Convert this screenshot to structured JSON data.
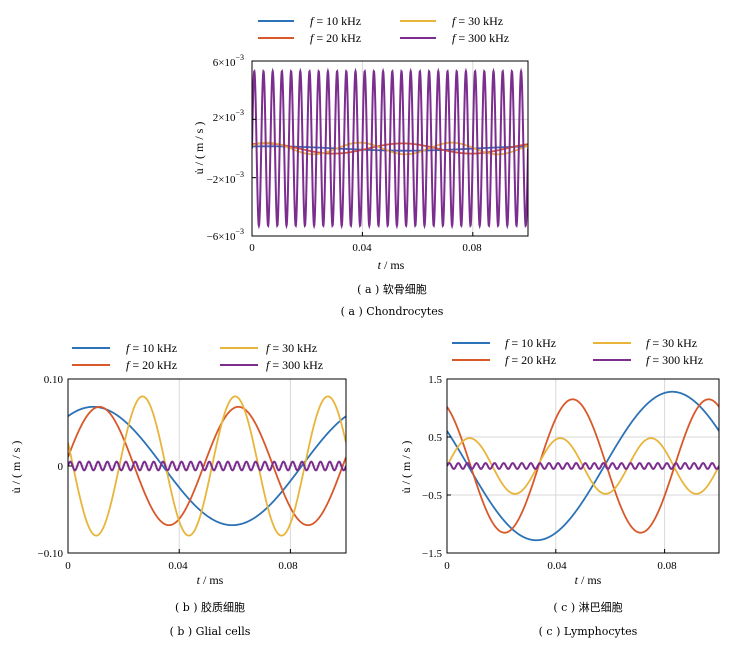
{
  "colors": {
    "f10": "#2c72b6",
    "f20": "#d9582a",
    "f30": "#e8b53a",
    "f300": "#7b2e8e",
    "grid": "#d9d9d9"
  },
  "legend_entries": [
    {
      "key": "f10",
      "f": "f",
      "text": " = 10 kHz"
    },
    {
      "key": "f20",
      "f": "f",
      "text": " = 20 kHz"
    },
    {
      "key": "f30",
      "f": "f",
      "text": " = 30 kHz"
    },
    {
      "key": "f300",
      "f": "f",
      "text": " = 300 kHz"
    }
  ],
  "xlabel_t": "t",
  "xlabel_unit": " / ms",
  "ylabel": "u̇ / ( m / s )",
  "panels": {
    "a": {
      "caption_cn": "( a )  软骨细胞",
      "caption_en": "( a )  Chondrocytes",
      "yticks": [
        "6×10",
        "2×10",
        "−2×10",
        "−6×10"
      ],
      "ytick_exp": "−3",
      "xticks": [
        "0",
        "0.04",
        "0.08"
      ]
    },
    "b": {
      "caption_cn": "( b )  胶质细胞",
      "caption_en": "( b )  Glial cells",
      "yticks": [
        "0.10",
        "0",
        "−0.10"
      ],
      "xticks": [
        "0",
        "0.04",
        "0.08"
      ]
    },
    "c": {
      "caption_cn": "( c )  淋巴细胞",
      "caption_en": "( c )  Lymphocytes",
      "yticks": [
        "1.5",
        "0.5",
        "−0.5",
        "−1.5"
      ],
      "xticks": [
        "0",
        "0.04",
        "0.08"
      ]
    }
  },
  "chart_data": [
    {
      "type": "line",
      "panel": "a",
      "xlim": [
        0,
        0.1
      ],
      "ylim": [
        -0.006,
        0.006
      ],
      "xticks": [
        0,
        0.04,
        0.08
      ],
      "yticks": [
        0.006,
        0.002,
        -0.002,
        -0.006
      ],
      "grid": true,
      "legend_position": "top",
      "series": [
        {
          "name": "f = 10 kHz",
          "key": "f10",
          "freq_khz": 10,
          "amplitude": 0.00015,
          "phase": 1.2
        },
        {
          "name": "f = 20 kHz",
          "key": "f20",
          "freq_khz": 20,
          "amplitude": 0.00035,
          "phase": 1.0
        },
        {
          "name": "f = 30 kHz",
          "key": "f30",
          "freq_khz": 30,
          "amplitude": 0.0004,
          "phase": 0.5
        },
        {
          "name": "f = 300 kHz",
          "key": "f300",
          "freq_khz": 300,
          "amplitude": 0.0053,
          "phase": 0.0
        }
      ]
    },
    {
      "type": "line",
      "panel": "b",
      "xlim": [
        0,
        0.1
      ],
      "ylim": [
        -0.1,
        0.1
      ],
      "xticks": [
        0,
        0.04,
        0.08
      ],
      "yticks": [
        0.1,
        0,
        -0.1
      ],
      "grid": true,
      "legend_position": "top",
      "series": [
        {
          "name": "f = 10 kHz",
          "key": "f10",
          "freq_khz": 10,
          "amplitude": 0.068,
          "phase": 1.0
        },
        {
          "name": "f = 20 kHz",
          "key": "f20",
          "freq_khz": 20,
          "amplitude": 0.068,
          "phase": 0.15
        },
        {
          "name": "f = 30 kHz",
          "key": "f30",
          "freq_khz": 30,
          "amplitude": 0.08,
          "phase": 2.8
        },
        {
          "name": "f = 300 kHz",
          "key": "f300",
          "freq_khz": 300,
          "amplitude": 0.005,
          "phase": 0.0
        }
      ]
    },
    {
      "type": "line",
      "panel": "c",
      "xlim": [
        0,
        0.1
      ],
      "ylim": [
        -1.5,
        1.5
      ],
      "xticks": [
        0,
        0.04,
        0.08
      ],
      "yticks": [
        1.5,
        0.5,
        -0.5,
        -1.5
      ],
      "grid": true,
      "legend_position": "top",
      "series": [
        {
          "name": "f = 10 kHz",
          "key": "f10",
          "freq_khz": 10,
          "amplitude": 1.28,
          "phase": 2.65
        },
        {
          "name": "f = 20 kHz",
          "key": "f20",
          "freq_khz": 20,
          "amplitude": 1.15,
          "phase": 2.05
        },
        {
          "name": "f = 30 kHz",
          "key": "f30",
          "freq_khz": 30,
          "amplitude": 0.48,
          "phase": 0.0
        },
        {
          "name": "f = 300 kHz",
          "key": "f300",
          "freq_khz": 300,
          "amplitude": 0.05,
          "phase": 0.0
        }
      ]
    }
  ]
}
